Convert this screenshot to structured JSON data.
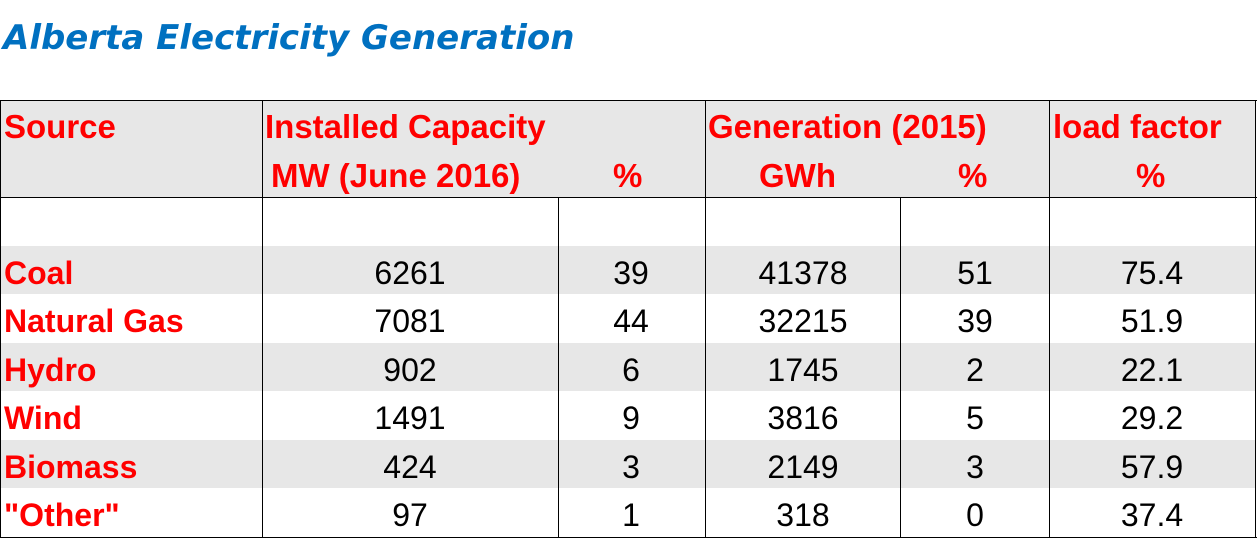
{
  "title": "Alberta Electricity Generation",
  "colors": {
    "title": "#0070c0",
    "header_text": "#ff0000",
    "band": "#e7e7e7"
  },
  "table": {
    "headers": {
      "source": "Source",
      "capacity": "Installed Capacity",
      "capacity_sub": "MW (June 2016)",
      "capacity_pct": "%",
      "generation": "Generation (2015)",
      "generation_sub": "GWh",
      "generation_pct": "%",
      "load_factor": "load factor",
      "load_factor_unit": "%"
    },
    "rows": [
      {
        "source": "Coal",
        "mw": "6261",
        "mw_pct": "39",
        "gwh": "41378",
        "gwh_pct": "51",
        "load": "75.4"
      },
      {
        "source": "Natural Gas",
        "mw": "7081",
        "mw_pct": "44",
        "gwh": "32215",
        "gwh_pct": "39",
        "load": "51.9"
      },
      {
        "source": "Hydro",
        "mw": "902",
        "mw_pct": "6",
        "gwh": "1745",
        "gwh_pct": "2",
        "load": "22.1"
      },
      {
        "source": "Wind",
        "mw": "1491",
        "mw_pct": "9",
        "gwh": "3816",
        "gwh_pct": "5",
        "load": "29.2"
      },
      {
        "source": "Biomass",
        "mw": "424",
        "mw_pct": "3",
        "gwh": "2149",
        "gwh_pct": "3",
        "load": "57.9"
      },
      {
        "source": "\"Other\"",
        "mw": "97",
        "mw_pct": "1",
        "gwh": "318",
        "gwh_pct": "0",
        "load": "37.4"
      }
    ]
  }
}
